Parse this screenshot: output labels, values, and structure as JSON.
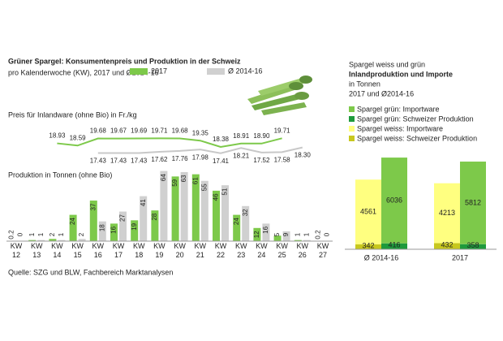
{
  "chart_data": [
    {
      "type": "line",
      "title": "Grüner Spargel: Konsumentenpreis und Produktion in der Schweiz",
      "subtitle": "pro Kalenderwoche (KW), 2017 und Ø2014-16",
      "label": "Preis für Inlandware (ohne Bio) in Fr./kg",
      "series": [
        {
          "color": "#7dc94a",
          "values": [
            null,
            null,
            18.93,
            18.59,
            19.68,
            19.67,
            19.69,
            19.71,
            19.68,
            19.35,
            18.38,
            18.91,
            18.9,
            19.71,
            null,
            null
          ],
          "value_labels": [
            null,
            null,
            "18.93",
            "18.59",
            "19.68",
            "19.67",
            "19.69",
            "19.71",
            "19.68",
            "19.35",
            "18.38",
            "18.91",
            "18.90",
            "19.71",
            null,
            null
          ]
        },
        {
          "color": "#c8c8c8",
          "values": [
            null,
            null,
            null,
            null,
            17.43,
            17.43,
            17.43,
            17.62,
            17.76,
            17.98,
            17.41,
            18.21,
            17.52,
            17.58,
            18.3,
            null
          ],
          "value_labels": [
            null,
            null,
            null,
            null,
            "17.43",
            "17.43",
            "17.43",
            "17.62",
            "17.76",
            "17.98",
            "17.41",
            "18.21",
            "17.52",
            "17.58",
            "18.30",
            null
          ]
        }
      ]
    },
    {
      "type": "bar",
      "label": "Produktion in Tonnen (ohne Bio)",
      "categories": [
        "KW 12",
        "KW 13",
        "KW 14",
        "KW 15",
        "KW 16",
        "KW 17",
        "KW 18",
        "KW 19",
        "KW 20",
        "KW 21",
        "KW 22",
        "KW 23",
        "KW 24",
        "KW 25",
        "KW 26",
        "KW 27"
      ],
      "series": [
        {
          "name": "2017",
          "color": "#7dc94a",
          "values": [
            0.2,
            1,
            2,
            24,
            37,
            16,
            19,
            28,
            59,
            61,
            46,
            24,
            12,
            5,
            1,
            0.2
          ]
        },
        {
          "name": "Ø 2014-16",
          "color": "#d0d0d0",
          "values": [
            0,
            1,
            1,
            2,
            18,
            27,
            41,
            64,
            63,
            55,
            51,
            32,
            16,
            9,
            1,
            0
          ]
        }
      ],
      "source": "Quelle: SZG und BLW, Fachbereich Marktanalysen"
    },
    {
      "type": "stacked_bar",
      "title": "Spargel weiss und grün",
      "subtitle": "Inlandproduktion und Importe",
      "unit": "in Tonnen",
      "note": "2017 und Ø2014-16",
      "categories": [
        "Ø 2014-16",
        "2017"
      ],
      "series": [
        {
          "name": "Spargel grün: Importware",
          "color": "#7dc94a",
          "values": [
            6036,
            5812
          ]
        },
        {
          "name": "Spargel grün: Schweizer Produktion",
          "color": "#1e9a3c",
          "values": [
            416,
            358
          ]
        },
        {
          "name": "Spargel weiss: Importware",
          "color": "#ffff80",
          "values": [
            4561,
            4213
          ]
        },
        {
          "name": "Spargel weiss: Schweizer Produktion",
          "color": "#c8c81e",
          "values": [
            342,
            432
          ]
        }
      ]
    }
  ]
}
